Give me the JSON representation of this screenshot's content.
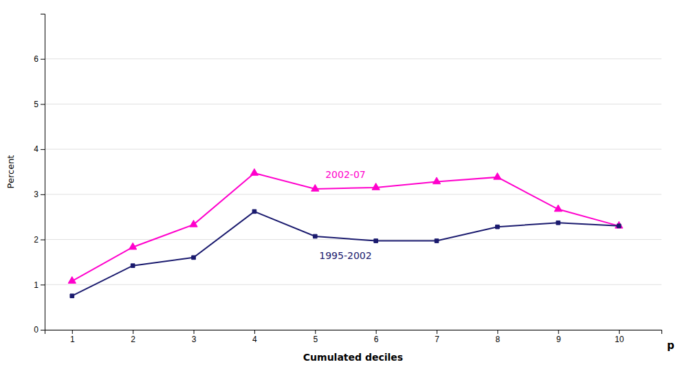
{
  "chart_data": {
    "type": "line",
    "x": [
      1,
      2,
      3,
      4,
      5,
      6,
      7,
      8,
      9,
      10
    ],
    "series": [
      {
        "name": "2002-07",
        "color": "#ff00cc",
        "marker": "triangle",
        "values": [
          1.08,
          1.83,
          2.33,
          3.47,
          3.12,
          3.15,
          3.28,
          3.38,
          2.67,
          2.3
        ]
      },
      {
        "name": "1995-2002",
        "color": "#1a1a6e",
        "marker": "square",
        "values": [
          0.75,
          1.42,
          1.6,
          2.62,
          2.07,
          1.97,
          1.97,
          2.28,
          2.37,
          2.3
        ]
      }
    ],
    "x_label": "Cumulated deciles",
    "y_label": "Percent",
    "annotations": [
      "p"
    ],
    "xlim": [
      0.55,
      10.7
    ],
    "ylim": [
      0,
      7
    ],
    "xticks": [
      1,
      2,
      3,
      4,
      5,
      6,
      7,
      8,
      9,
      10
    ],
    "yticks": [
      0,
      1,
      2,
      3,
      4,
      5,
      6
    ],
    "grid": "y"
  }
}
